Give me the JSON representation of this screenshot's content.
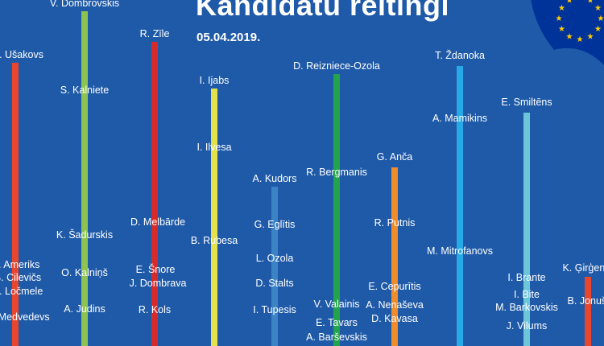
{
  "header": {
    "title": "Kandidātu reitingi",
    "date": "05.04.2019."
  },
  "colors": {
    "background": "#1f5aa8",
    "flag_blue": "#003399",
    "flag_star": "#ffcc00"
  },
  "chart_data": {
    "type": "rank-lines",
    "title": "Kandidātu reitingi",
    "subtitle": "05.04.2019.",
    "series": [
      {
        "color": "#e8462f",
        "candidates": [
          "N. Ušakovs",
          "I. Ameriks",
          "B. Cilevičs",
          "A. Ločmele",
          "S. Medvedevs"
        ]
      },
      {
        "color": "#8dc451",
        "candidates": [
          "V. Dombrovskis",
          "S. Kalniete",
          "K. Šadurskis",
          "O. Kalniņš",
          "A. Judins"
        ]
      },
      {
        "color": "#d52b29",
        "candidates": [
          "R. Zīle",
          "D. Melbārde",
          "E. Šnore",
          "J. Dombrava",
          "R. Kols"
        ]
      },
      {
        "color": "#e4e14a",
        "candidates": [
          "I. Ijabs",
          "I. Ilvesa",
          "B. Rubesa"
        ]
      },
      {
        "color": "#3c83c6",
        "candidates": [
          "A. Kudors",
          "G. Eglītis",
          "L. Ozola",
          "D. Stalts",
          "I. Tupesis"
        ]
      },
      {
        "color": "#23a34b",
        "candidates": [
          "D. Reizniece-Ozola",
          "R. Bergmanis",
          "V. Valainis",
          "E. Tavars",
          "A. Barševskis"
        ]
      },
      {
        "color": "#f08c2a",
        "candidates": [
          "G. Anča",
          "R. Putnis",
          "E. Cepurītis",
          "A. Nenaševa",
          "D. Kavasa"
        ]
      },
      {
        "color": "#26a9e6",
        "candidates": [
          "T. Ždanoka",
          "A. Mamikins",
          "M. Mitrofanovs"
        ]
      },
      {
        "color": "#6cc5d9",
        "candidates": [
          "E. Smiltēns",
          "I. Brante",
          "I. Bite",
          "M. Barkovskis",
          "J. Vilums"
        ]
      },
      {
        "color": "#e8462f",
        "candidates": [
          "K. Ģirģens",
          "B. Jonušs"
        ]
      }
    ]
  }
}
